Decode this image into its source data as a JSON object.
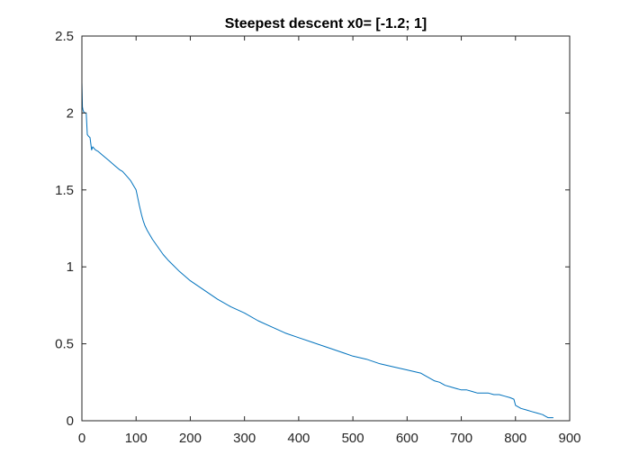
{
  "chart_data": {
    "type": "line",
    "title": "Steepest descent x0= [-1.2; 1]",
    "xlabel": "",
    "ylabel": "",
    "xlim": [
      0,
      900
    ],
    "ylim": [
      0,
      2.5
    ],
    "xticks": [
      0,
      100,
      200,
      300,
      400,
      500,
      600,
      700,
      800,
      900
    ],
    "yticks": [
      0,
      0.5,
      1,
      1.5,
      2,
      2.5
    ],
    "xtick_labels": [
      "0",
      "100",
      "200",
      "300",
      "400",
      "500",
      "600",
      "700",
      "800",
      "900"
    ],
    "ytick_labels": [
      "0",
      "0.5",
      "1",
      "1.5",
      "2",
      "2.5"
    ],
    "grid": false,
    "box": true,
    "line_color": "#0072BD",
    "series": [
      {
        "x": [
          0,
          1,
          2,
          3,
          5,
          8,
          10,
          12,
          15,
          18,
          20,
          25,
          30,
          40,
          50,
          60,
          70,
          75,
          80,
          85,
          90,
          95,
          100,
          103,
          106,
          110,
          113,
          116,
          120,
          130,
          140,
          150,
          160,
          180,
          200,
          225,
          250,
          275,
          300,
          325,
          350,
          375,
          400,
          425,
          450,
          475,
          500,
          525,
          550,
          575,
          600,
          625,
          630,
          640,
          650,
          660,
          670,
          680,
          690,
          700,
          710,
          720,
          730,
          740,
          750,
          760,
          770,
          780,
          790,
          797,
          800,
          810,
          820,
          830,
          840,
          850,
          855,
          860,
          870
        ],
        "y": [
          2.2,
          2.04,
          2.02,
          2.01,
          2.0,
          2.0,
          1.86,
          1.85,
          1.84,
          1.76,
          1.78,
          1.76,
          1.75,
          1.72,
          1.69,
          1.66,
          1.63,
          1.62,
          1.6,
          1.58,
          1.56,
          1.53,
          1.5,
          1.45,
          1.4,
          1.34,
          1.3,
          1.27,
          1.24,
          1.18,
          1.13,
          1.08,
          1.04,
          0.97,
          0.91,
          0.85,
          0.79,
          0.74,
          0.7,
          0.65,
          0.61,
          0.57,
          0.54,
          0.51,
          0.48,
          0.45,
          0.42,
          0.4,
          0.37,
          0.35,
          0.33,
          0.31,
          0.3,
          0.28,
          0.26,
          0.25,
          0.23,
          0.22,
          0.21,
          0.2,
          0.2,
          0.19,
          0.18,
          0.18,
          0.18,
          0.17,
          0.17,
          0.16,
          0.15,
          0.14,
          0.1,
          0.08,
          0.07,
          0.06,
          0.05,
          0.04,
          0.03,
          0.02,
          0.02
        ]
      }
    ]
  }
}
